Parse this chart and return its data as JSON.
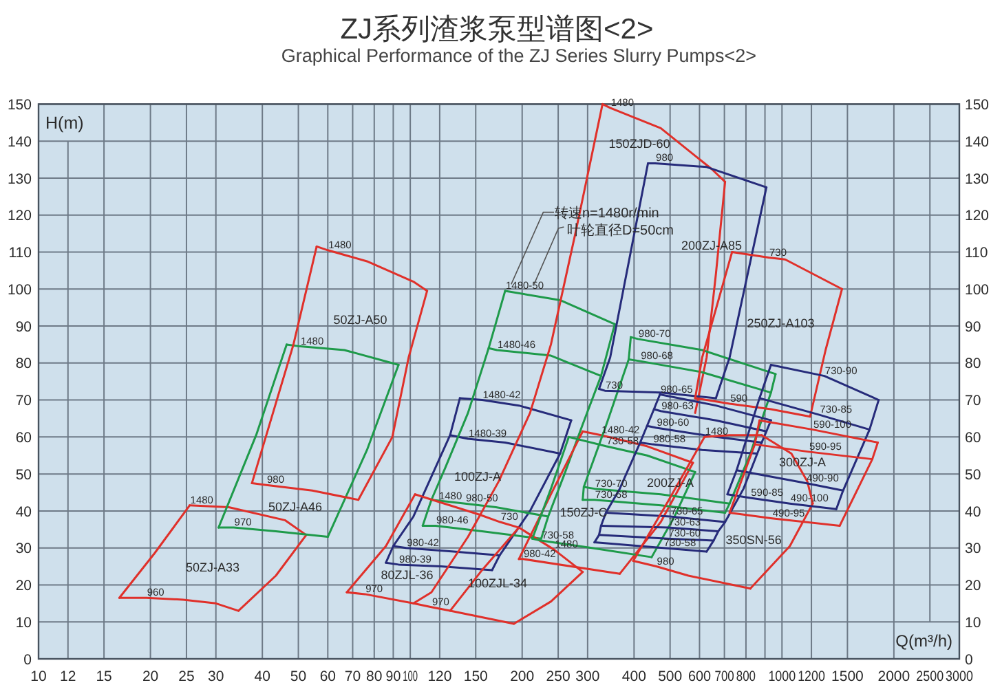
{
  "chart_data": {
    "type": "line",
    "title": "ZJ系列渣浆泵型谱图<2>",
    "subtitle": "Graphical Performance of the ZJ Series Slurry Pumps<2>",
    "xlabel": "Q(m³/h)",
    "ylabel": "H(m)",
    "log": "x",
    "xlim": [
      10,
      3000
    ],
    "ylim": [
      0,
      150
    ],
    "y2lim": [
      0,
      150
    ],
    "xticks": [
      10,
      12,
      15,
      20,
      25,
      30,
      40,
      50,
      60,
      70,
      80,
      90,
      100,
      120,
      150,
      200,
      250,
      300,
      400,
      500,
      600,
      700,
      800,
      {
        "value": 900,
        "label": null
      },
      1000,
      1200,
      1500,
      2000,
      2500,
      3000
    ],
    "yticks": [
      0,
      10,
      20,
      30,
      40,
      50,
      60,
      70,
      80,
      90,
      100,
      110,
      120,
      130,
      140,
      150
    ],
    "y2ticks": [
      0,
      10,
      20,
      30,
      40,
      50,
      60,
      70,
      80,
      90,
      100,
      110,
      120,
      130,
      140,
      150
    ],
    "grid": true,
    "series": [
      {
        "color": "#e0302a",
        "x": [
          25.5,
          32.5,
          46,
          52.5
        ],
        "values": [
          41.5,
          41,
          37.5,
          33.5
        ]
      },
      {
        "color": "#e0302a",
        "x": [
          52.5,
          43.5,
          34.5
        ],
        "values": [
          33.5,
          22.5,
          13
        ]
      },
      {
        "color": "#e0302a",
        "x": [
          34.5,
          30,
          24.5,
          19.5,
          16.5
        ],
        "values": [
          13,
          15,
          16,
          16.5,
          16.5
        ]
      },
      {
        "color": "#e0302a",
        "x": [
          16.5,
          20.5,
          25.5
        ],
        "values": [
          16.5,
          28.5,
          41.5
        ]
      },
      {
        "color": "#1e9a4a",
        "x": [
          46.5,
          50.5,
          66.5,
          93
        ],
        "values": [
          85,
          84.5,
          83.5,
          79.5
        ]
      },
      {
        "color": "#1e9a4a",
        "x": [
          93,
          76.5,
          60
        ],
        "values": [
          79.5,
          56.5,
          33
        ]
      },
      {
        "color": "#1e9a4a",
        "x": [
          60,
          43.5,
          33.5,
          30.5
        ],
        "values": [
          33,
          34.5,
          35.5,
          35.5
        ]
      },
      {
        "color": "#1e9a4a",
        "x": [
          30.5,
          38.5,
          46.5
        ],
        "values": [
          35.5,
          60.5,
          85
        ]
      },
      {
        "color": "#e0302a",
        "x": [
          56,
          60,
          76.5,
          102,
          111
        ],
        "values": [
          111.5,
          110.5,
          107.5,
          102,
          99.5
        ]
      },
      {
        "color": "#e0302a",
        "x": [
          111,
          99,
          89.5,
          72.5
        ],
        "values": [
          99.5,
          81.5,
          60,
          43
        ]
      },
      {
        "color": "#e0302a",
        "x": [
          72.5,
          54.5,
          41,
          37.5
        ],
        "values": [
          43,
          45.5,
          47,
          47.5
        ]
      },
      {
        "color": "#e0302a",
        "x": [
          37.5,
          48.5,
          56
        ],
        "values": [
          47.5,
          85,
          111.5
        ]
      },
      {
        "color": "#262b7a",
        "x": [
          136,
          156,
          196,
          271
        ],
        "values": [
          70.5,
          70,
          68.5,
          64.5
        ]
      },
      {
        "color": "#262b7a",
        "x": [
          128,
          143,
          180,
          253
        ],
        "values": [
          60.5,
          59.5,
          58.5,
          55.5
        ]
      },
      {
        "color": "#262b7a",
        "x": [
          90,
          97.5,
          131,
          174
        ],
        "values": [
          30.5,
          30,
          29,
          28
        ]
      },
      {
        "color": "#262b7a",
        "x": [
          86,
          93,
          121,
          166
        ],
        "values": [
          26,
          25.5,
          25,
          24
        ]
      },
      {
        "color": "#262b7a",
        "x": [
          136,
          128,
          102,
          90,
          86
        ],
        "values": [
          70.5,
          60.5,
          38.5,
          30.5,
          26
        ]
      },
      {
        "color": "#262b7a",
        "x": [
          271,
          253,
          210,
          174,
          166
        ],
        "values": [
          64.5,
          55.5,
          40,
          28,
          24
        ]
      },
      {
        "color": "#1e9a4a",
        "x": [
          180,
          253,
          355
        ],
        "values": [
          99.5,
          97,
          90.5
        ]
      },
      {
        "color": "#1e9a4a",
        "x": [
          162.5,
          171,
          239,
          326
        ],
        "values": [
          84,
          83.5,
          82,
          76.5
        ]
      },
      {
        "color": "#1e9a4a",
        "x": [
          114,
          140.5,
          170,
          235
        ],
        "values": [
          43,
          42,
          41,
          38.5
        ]
      },
      {
        "color": "#1e9a4a",
        "x": [
          108,
          117,
          156,
          225
        ],
        "values": [
          36,
          36,
          34.5,
          32.5
        ]
      },
      {
        "color": "#1e9a4a",
        "x": [
          180,
          162.5,
          143,
          124,
          114,
          108
        ],
        "values": [
          99.5,
          84,
          66.5,
          51.5,
          43,
          36
        ]
      },
      {
        "color": "#1e9a4a",
        "x": [
          355,
          326,
          290,
          260,
          235,
          225
        ],
        "values": [
          90.5,
          76.5,
          63,
          50,
          38.5,
          32.5
        ]
      },
      {
        "color": "#e0302a",
        "x": [
          329,
          345,
          472,
          646,
          703
        ],
        "values": [
          150,
          149,
          143.5,
          132.5,
          129
        ]
      },
      {
        "color": "#e0302a",
        "x": [
          703,
          664,
          627,
          584
        ],
        "values": [
          129,
          104,
          81.5,
          66.5
        ]
      },
      {
        "color": "#e0302a",
        "x": [
          329,
          278,
          239,
          210,
          173,
          143,
          114,
          102
        ],
        "values": [
          150,
          115,
          85,
          66.5,
          48,
          33,
          18,
          15
        ]
      },
      {
        "color": "#e0302a",
        "x": [
          103,
          119,
          153.5,
          174.5,
          196,
          244,
          291
        ],
        "values": [
          44.5,
          42.5,
          39,
          37,
          35.5,
          29.5,
          23.5
        ]
      },
      {
        "color": "#e0302a",
        "x": [
          103,
          86,
          67.5
        ],
        "values": [
          44.5,
          30.5,
          18
        ]
      },
      {
        "color": "#e0302a",
        "x": [
          67.5,
          75.5,
          102,
          114,
          128,
          190
        ],
        "values": [
          18,
          17.5,
          15,
          14,
          13,
          9.5
        ]
      },
      {
        "color": "#e0302a",
        "x": [
          190,
          239,
          291
        ],
        "values": [
          9.5,
          15.5,
          23.5
        ]
      },
      {
        "color": "#e0302a",
        "x": [
          196,
          156,
          128
        ],
        "values": [
          35.5,
          24,
          13
        ]
      },
      {
        "color": "#e0302a",
        "x": [
          291,
          326,
          433.5,
          576
        ],
        "values": [
          61.5,
          60.5,
          57.5,
          53
        ]
      },
      {
        "color": "#e0302a",
        "x": [
          576,
          472,
          366
        ],
        "values": [
          53,
          37,
          23
        ]
      },
      {
        "color": "#e0302a",
        "x": [
          366,
          201,
          196
        ],
        "values": [
          23,
          27,
          27
        ]
      },
      {
        "color": "#e0302a",
        "x": [
          196,
          239,
          291
        ],
        "values": [
          27,
          44.5,
          61.5
        ]
      },
      {
        "color": "#1e9a4a",
        "x": [
          267,
          336,
          433.5,
          584
        ],
        "values": [
          60,
          57.5,
          55,
          50.5
        ]
      },
      {
        "color": "#1e9a4a",
        "x": [
          584,
          514,
          446
        ],
        "values": [
          50.5,
          38.5,
          27.5
        ]
      },
      {
        "color": "#1e9a4a",
        "x": [
          446,
          308,
          225,
          213
        ],
        "values": [
          27.5,
          30,
          32,
          32.5
        ]
      },
      {
        "color": "#1e9a4a",
        "x": [
          213,
          239,
          267
        ],
        "values": [
          32.5,
          46,
          60
        ]
      },
      {
        "color": "#1e9a4a",
        "x": [
          392,
          409.5,
          610,
          961
        ],
        "values": [
          87,
          86.5,
          83.5,
          77
        ]
      },
      {
        "color": "#1e9a4a",
        "x": [
          387,
          415.5,
          610,
          934
        ],
        "values": [
          81,
          80.5,
          77.5,
          72
        ]
      },
      {
        "color": "#1e9a4a",
        "x": [
          293,
          313,
          472,
          723
        ],
        "values": [
          46.5,
          46,
          44.5,
          42
        ]
      },
      {
        "color": "#1e9a4a",
        "x": [
          291,
          313,
          472,
          703
        ],
        "values": [
          43,
          43,
          41.5,
          39.5
        ]
      },
      {
        "color": "#1e9a4a",
        "x": [
          392,
          387,
          336,
          293,
          291
        ],
        "values": [
          87,
          81,
          63,
          46.5,
          43
        ]
      },
      {
        "color": "#1e9a4a",
        "x": [
          961,
          934,
          822,
          723,
          703
        ],
        "values": [
          77,
          72,
          55.5,
          42,
          39.5
        ]
      },
      {
        "color": "#262b7a",
        "x": [
          436,
          456,
          627,
          908
        ],
        "values": [
          134,
          134,
          133,
          127.5
        ]
      },
      {
        "color": "#262b7a",
        "x": [
          908,
          723,
          664
        ],
        "values": [
          127.5,
          81.5,
          70.5
        ]
      },
      {
        "color": "#262b7a",
        "x": [
          664,
          472,
          334,
          322
        ],
        "values": [
          70.5,
          72,
          72.5,
          73
        ]
      },
      {
        "color": "#262b7a",
        "x": [
          322,
          345,
          436
        ],
        "values": [
          73,
          81.5,
          134
        ]
      },
      {
        "color": "#262b7a",
        "x": [
          469.5,
          664,
          934
        ],
        "values": [
          71.5,
          68.5,
          64.5
        ]
      },
      {
        "color": "#262b7a",
        "x": [
          452.5,
          472,
          664,
          908
        ],
        "values": [
          67.5,
          67,
          64.5,
          61.5
        ]
      },
      {
        "color": "#262b7a",
        "x": [
          433.5,
          459,
          664,
          882
        ],
        "values": [
          63,
          62.5,
          60,
          58.5
        ]
      },
      {
        "color": "#262b7a",
        "x": [
          415.5,
          449,
          610,
          858
        ],
        "values": [
          58.5,
          58,
          56.5,
          55.5
        ]
      },
      {
        "color": "#262b7a",
        "x": [
          336,
          500,
          703
        ],
        "values": [
          39.5,
          38.5,
          37
        ]
      },
      {
        "color": "#262b7a",
        "x": [
          326,
          493,
          674
        ],
        "values": [
          36,
          35.5,
          34.5
        ]
      },
      {
        "color": "#262b7a",
        "x": [
          322,
          493,
          655
        ],
        "values": [
          33.5,
          32.5,
          32
        ]
      },
      {
        "color": "#262b7a",
        "x": [
          313,
          479,
          627
        ],
        "values": [
          31.5,
          30,
          29
        ]
      },
      {
        "color": "#262b7a",
        "x": [
          469.5,
          452.5,
          433.5,
          415.5,
          366,
          336,
          326,
          322,
          313
        ],
        "values": [
          71.5,
          67.5,
          63,
          58.5,
          46,
          39.5,
          36,
          33.5,
          31.5
        ]
      },
      {
        "color": "#262b7a",
        "x": [
          934,
          908,
          882,
          858,
          788,
          703,
          674,
          655,
          627
        ],
        "values": [
          64.5,
          61.5,
          58.5,
          55.5,
          46,
          37,
          34.5,
          32,
          29
        ]
      },
      {
        "color": "#e0302a",
        "x": [
          619,
          723,
          882
        ],
        "values": [
          60,
          60.5,
          60.5
        ]
      },
      {
        "color": "#e0302a",
        "x": [
          882,
          1060,
          1170,
          1210
        ],
        "values": [
          60.5,
          55.5,
          48,
          42
        ]
      },
      {
        "color": "#e0302a",
        "x": [
          1210,
          1050,
          822
        ],
        "values": [
          42,
          30.5,
          19
        ]
      },
      {
        "color": "#e0302a",
        "x": [
          822,
          560,
          459,
          398
        ],
        "values": [
          19,
          22.5,
          25,
          26.5
        ]
      },
      {
        "color": "#e0302a",
        "x": [
          398,
          493,
          619
        ],
        "values": [
          26.5,
          42.5,
          60
        ]
      },
      {
        "color": "#e0302a",
        "x": [
          734,
          921,
          1020,
          1450
        ],
        "values": [
          110,
          108.5,
          108,
          100
        ]
      },
      {
        "color": "#e0302a",
        "x": [
          1450,
          1310,
          1190
        ],
        "values": [
          100,
          83.5,
          65.5
        ]
      },
      {
        "color": "#e0302a",
        "x": [
          1190,
          934,
          723,
          584
        ],
        "values": [
          65.5,
          67.5,
          69,
          70.5
        ]
      },
      {
        "color": "#e0302a",
        "x": [
          584,
          610,
          734
        ],
        "values": [
          70.5,
          81.5,
          110
        ]
      },
      {
        "color": "#262b7a",
        "x": [
          934,
          1300,
          1820
        ],
        "values": [
          79.5,
          76.5,
          70
        ]
      },
      {
        "color": "#262b7a",
        "x": [
          870,
          1260,
          1720
        ],
        "values": [
          70.5,
          66,
          62
        ]
      },
      {
        "color": "#262b7a",
        "x": [
          755,
          1160,
          1460
        ],
        "values": [
          51,
          47.5,
          45.5
        ]
      },
      {
        "color": "#262b7a",
        "x": [
          713,
          822,
          1050,
          1400
        ],
        "values": [
          44.5,
          43.5,
          42,
          40.5
        ]
      },
      {
        "color": "#262b7a",
        "x": [
          934,
          870,
          755,
          713
        ],
        "values": [
          79.5,
          70.5,
          51,
          44.5
        ]
      },
      {
        "color": "#262b7a",
        "x": [
          1820,
          1720,
          1460,
          1400
        ],
        "values": [
          70,
          62,
          45.5,
          40.5
        ]
      },
      {
        "color": "#e0302a",
        "x": [
          870,
          1210,
          1810
        ],
        "values": [
          64.5,
          62,
          58.5
        ]
      },
      {
        "color": "#e0302a",
        "x": [
          845,
          1180,
          1750
        ],
        "values": [
          58,
          56,
          54
        ]
      },
      {
        "color": "#e0302a",
        "x": [
          723,
          940,
          1430
        ],
        "values": [
          39.5,
          38,
          36
        ]
      },
      {
        "color": "#e0302a",
        "x": [
          870,
          845,
          723
        ],
        "values": [
          64.5,
          58,
          39.5
        ]
      },
      {
        "color": "#e0302a",
        "x": [
          1810,
          1750,
          1430
        ],
        "values": [
          58.5,
          54,
          36
        ]
      }
    ],
    "annotations": [
      "转速n=1480r/min",
      "叶轮直径D=50cm",
      "50ZJ-A33",
      "50ZJ-A46",
      "50ZJ-A50",
      "100ZJ-A",
      "80ZJL-36",
      "100ZJL-34",
      "150ZJ-C",
      "200ZJ-A",
      "150ZJD-60",
      "200ZJ-A85",
      "250ZJ-A103",
      "300ZJ-A",
      "350SN-56",
      {
        "text": "1480",
        "x": 25.5,
        "y": 41.5
      },
      {
        "text": "960",
        "x": 19.5,
        "y": 16.5
      },
      {
        "text": "1480",
        "x": 50.5,
        "y": 84.5
      },
      {
        "text": "970",
        "x": 33.5,
        "y": 35.5
      },
      {
        "text": "1480",
        "x": 60,
        "y": 110.5
      },
      {
        "text": "980",
        "x": 41,
        "y": 47
      },
      {
        "text": "1480-42",
        "x": 156,
        "y": 70
      },
      {
        "text": "1480-39",
        "x": 143,
        "y": 59.5
      },
      {
        "text": "980-42",
        "x": 97.5,
        "y": 30
      },
      {
        "text": "980-39",
        "x": 93,
        "y": 25.5
      },
      {
        "text": "1480-50",
        "x": 180,
        "y": 99.5
      },
      {
        "text": "1480-46",
        "x": 171,
        "y": 83.5
      },
      {
        "text": "980-50",
        "x": 140.5,
        "y": 42
      },
      {
        "text": "980-46",
        "x": 117,
        "y": 36
      },
      {
        "text": "1480",
        "x": 345,
        "y": 149
      },
      {
        "text": "1480",
        "x": 119,
        "y": 42.5
      },
      {
        "text": "730",
        "x": 174.5,
        "y": 37
      },
      {
        "text": "1480",
        "x": 244,
        "y": 29.5
      },
      {
        "text": "970",
        "x": 75.5,
        "y": 17.5
      },
      {
        "text": "970",
        "x": 114,
        "y": 14
      },
      {
        "text": "1480-42",
        "x": 326,
        "y": 60.5
      },
      {
        "text": "980-42",
        "x": 201,
        "y": 27
      },
      {
        "text": "730-58",
        "x": 336,
        "y": 57.5
      },
      {
        "text": "730-58",
        "x": 225,
        "y": 32
      },
      {
        "text": "980-70",
        "x": 409.5,
        "y": 86.5
      },
      {
        "text": "980-68",
        "x": 415.5,
        "y": 80.5
      },
      {
        "text": "730-70",
        "x": 313,
        "y": 46
      },
      {
        "text": "730-68",
        "x": 313,
        "y": 43
      },
      {
        "text": "980",
        "x": 456,
        "y": 134
      },
      {
        "text": "730",
        "x": 334,
        "y": 72.5
      },
      {
        "text": "980-65",
        "x": 469.5,
        "y": 71.5
      },
      {
        "text": "980-63",
        "x": 472,
        "y": 67
      },
      {
        "text": "980-60",
        "x": 459,
        "y": 62.5
      },
      {
        "text": "980-58",
        "x": 449,
        "y": 58
      },
      {
        "text": "730-65",
        "x": 500,
        "y": 38.5
      },
      {
        "text": "730-63",
        "x": 493,
        "y": 35.5
      },
      {
        "text": "730-60",
        "x": 493,
        "y": 32.5
      },
      {
        "text": "730-58",
        "x": 479,
        "y": 30
      },
      {
        "text": "1480",
        "x": 619,
        "y": 60
      },
      {
        "text": "980",
        "x": 459,
        "y": 25
      },
      {
        "text": "730",
        "x": 921,
        "y": 108.5
      },
      {
        "text": "590",
        "x": 723,
        "y": 69
      },
      {
        "text": "730-90",
        "x": 1300,
        "y": 76.5
      },
      {
        "text": "730-85",
        "x": 1260,
        "y": 66
      },
      {
        "text": "490-90",
        "x": 1160,
        "y": 47.5
      },
      {
        "text": "490-100",
        "x": 1050,
        "y": 42
      },
      {
        "text": "590-85",
        "x": 822,
        "y": 43.5
      },
      {
        "text": "590-100",
        "x": 1210,
        "y": 62
      },
      {
        "text": "590-95",
        "x": 1180,
        "y": 56
      },
      {
        "text": "490-95",
        "x": 940,
        "y": 38
      }
    ]
  }
}
